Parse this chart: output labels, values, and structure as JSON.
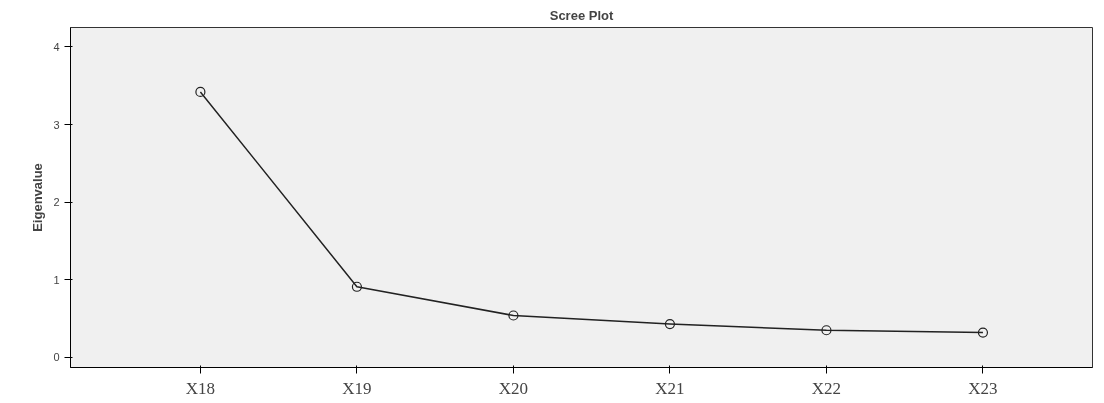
{
  "chart_data": {
    "type": "line",
    "title": "Scree Plot",
    "ylabel": "Eigenvalue",
    "categories": [
      "X18",
      "X19",
      "X20",
      "X21",
      "X22",
      "X23"
    ],
    "series": [
      {
        "color": "#222222",
        "values": [
          3.42,
          0.91,
          0.54,
          0.43,
          0.35,
          0.32
        ]
      }
    ],
    "ylim": [
      -0.13,
      4.25
    ],
    "yticks": [
      0,
      1,
      2,
      3,
      4
    ],
    "grid": false,
    "marker": "circle",
    "line_style": "solid"
  }
}
